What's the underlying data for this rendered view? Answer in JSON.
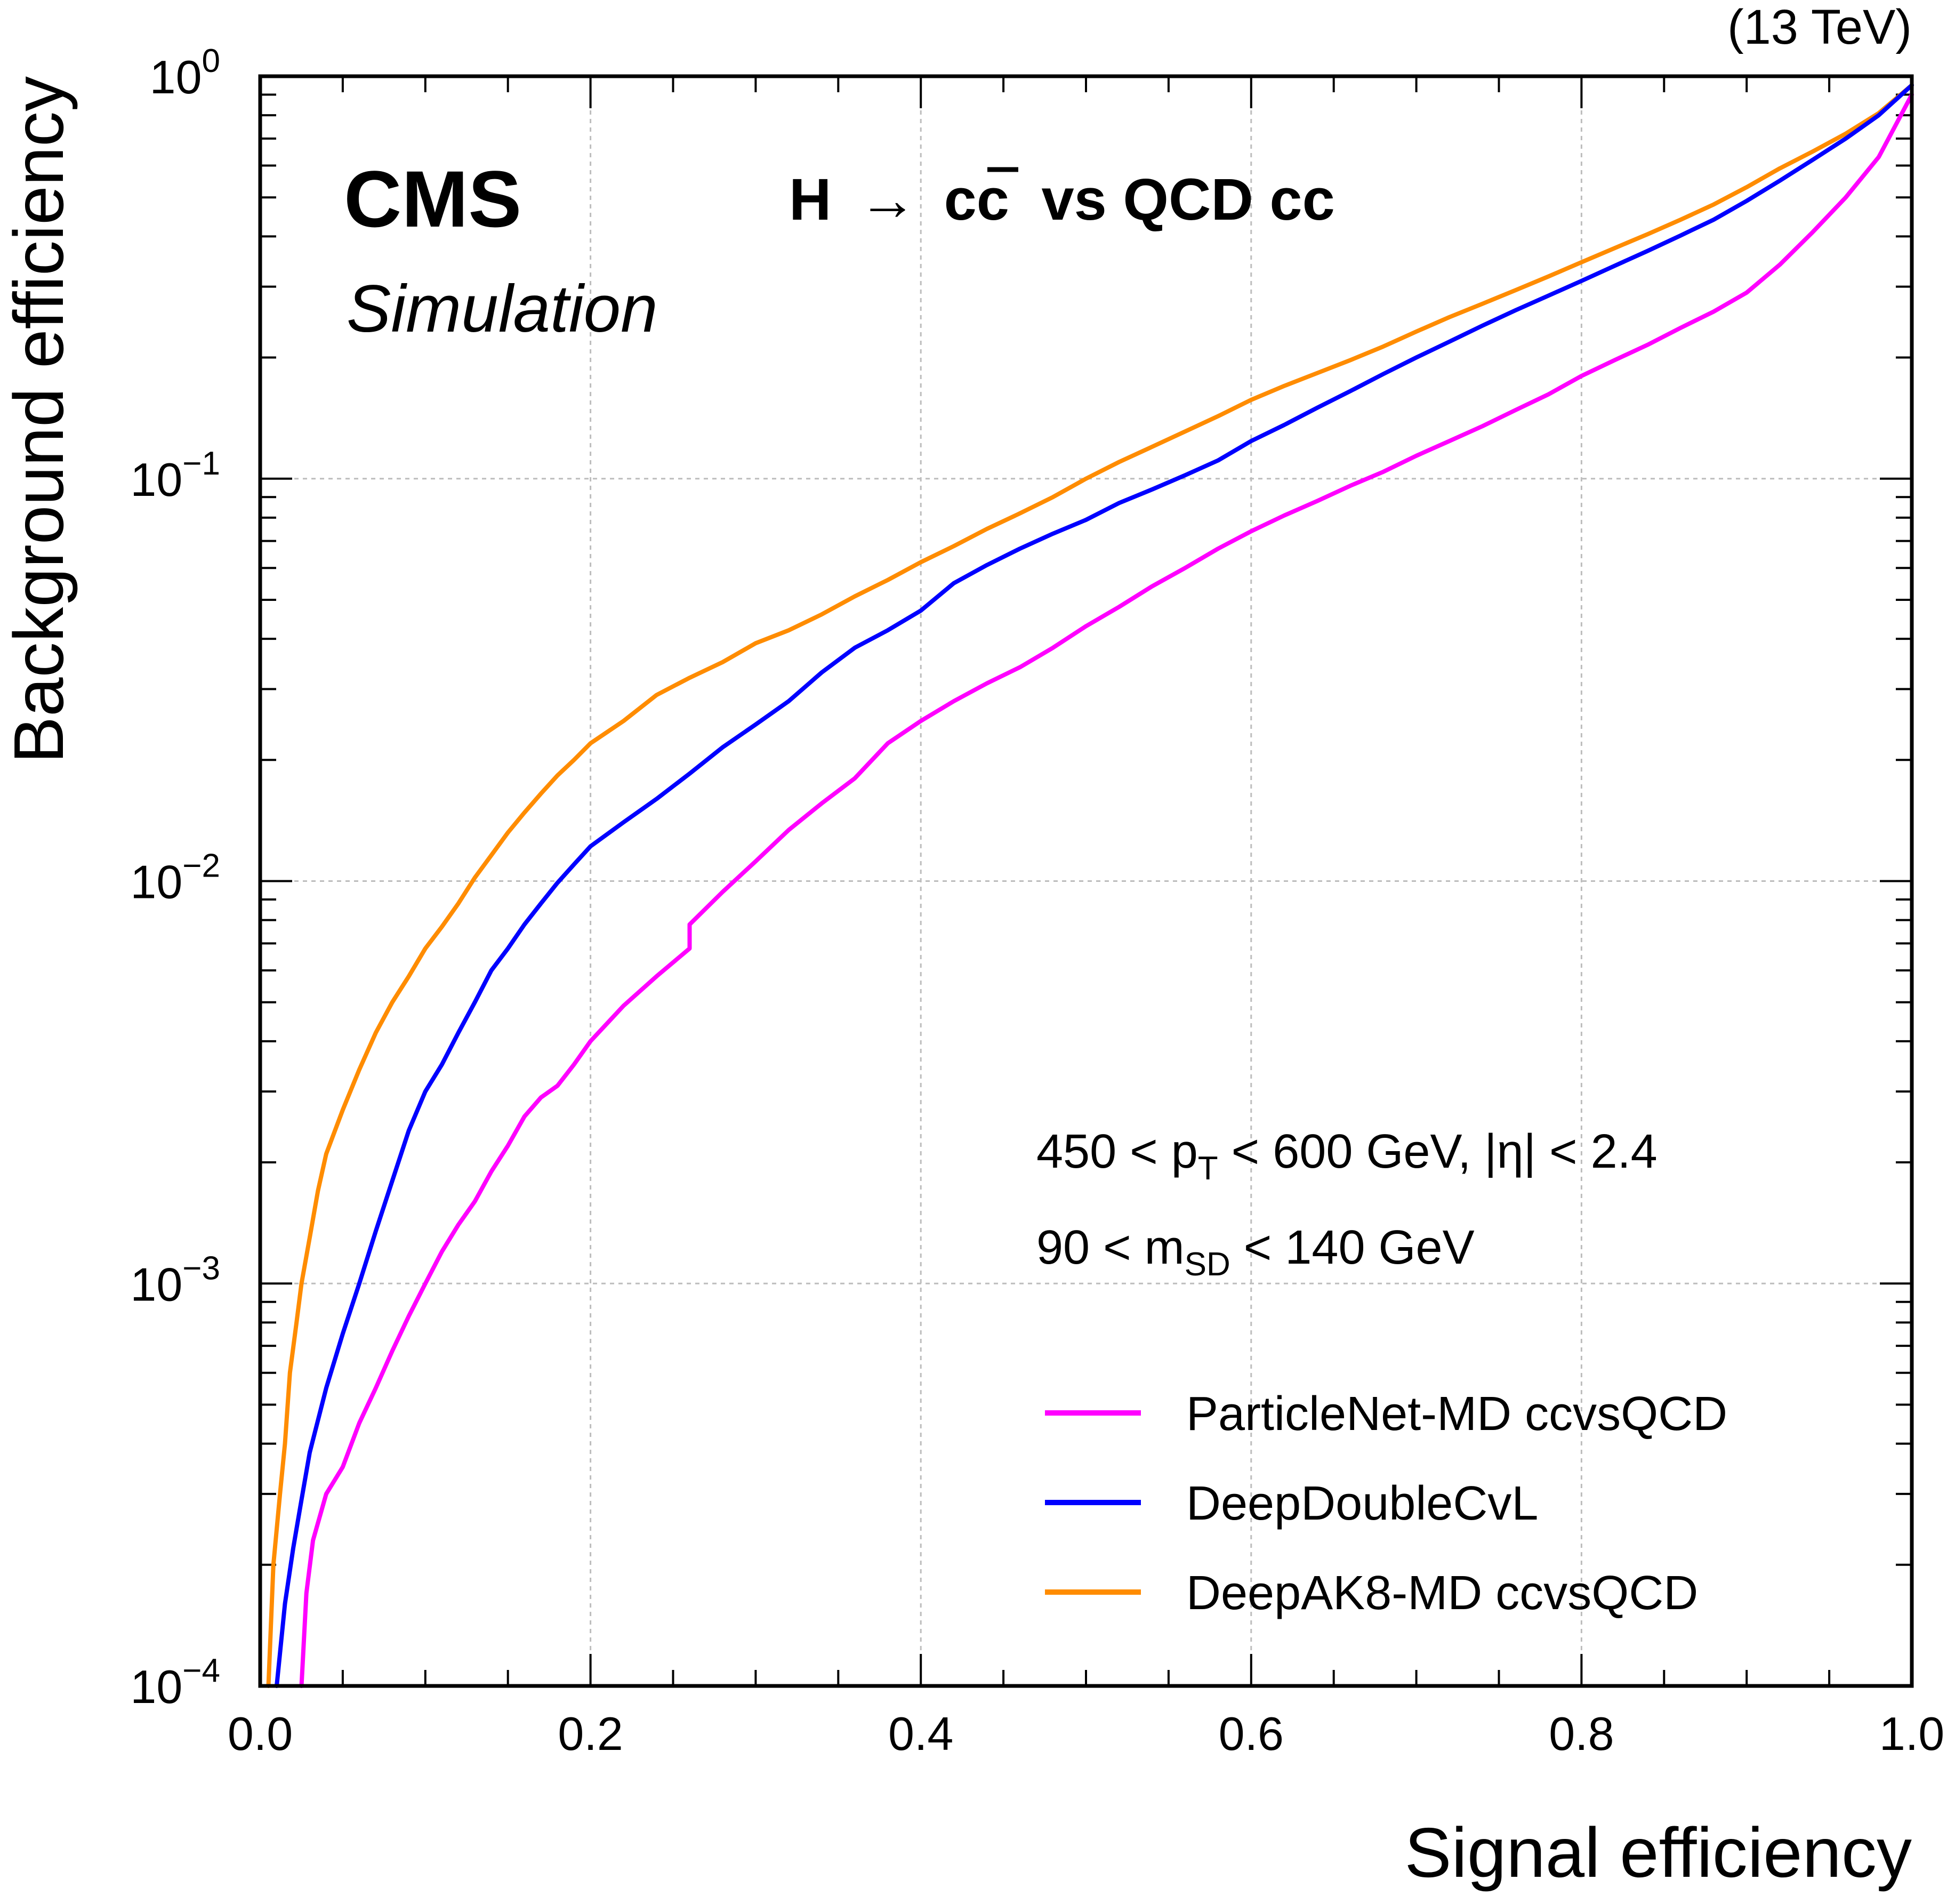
{
  "lumi_label": "(13 TeV)",
  "cms_label": "CMS",
  "sim_label": "Simulation",
  "process": {
    "lhs": "H",
    "arrow": "→",
    "cc": "cc",
    "rest": "vs QCD cc"
  },
  "cut_lines": [
    {
      "parts": [
        "450 < p",
        "T",
        " < 600 GeV, |η| < 2.4"
      ]
    },
    {
      "parts": [
        "90 < m",
        "SD",
        " < 140 GeV"
      ]
    }
  ],
  "chart_data": {
    "type": "line",
    "title": "",
    "xlabel": "Signal efficiency",
    "ylabel": "Background efficiency",
    "xlim": [
      0.0,
      1.0
    ],
    "ylim": [
      0.0001,
      1
    ],
    "yscale": "log",
    "grid": true,
    "legend_position": "bottom-right",
    "x_ticks": [
      {
        "value": 0.0,
        "label": "0.0"
      },
      {
        "value": 0.2,
        "label": "0.2"
      },
      {
        "value": 0.4,
        "label": "0.4"
      },
      {
        "value": 0.6,
        "label": "0.6"
      },
      {
        "value": 0.8,
        "label": "0.8"
      },
      {
        "value": 1.0,
        "label": "1.0"
      }
    ],
    "y_ticks": [
      {
        "value": 1,
        "base": "10",
        "exp": "0"
      },
      {
        "value": 0.1,
        "base": "10",
        "exp": "−1"
      },
      {
        "value": 0.01,
        "base": "10",
        "exp": "−2"
      },
      {
        "value": 0.001,
        "base": "10",
        "exp": "−3"
      },
      {
        "value": 0.0001,
        "base": "10",
        "exp": "−4"
      }
    ],
    "series": [
      {
        "name": "ParticleNet-MD ccvsQCD",
        "color": "#ff00ff",
        "points": [
          [
            0.025,
            0.0001
          ],
          [
            0.028,
            0.00017
          ],
          [
            0.032,
            0.00023
          ],
          [
            0.04,
            0.0003
          ],
          [
            0.05,
            0.00035
          ],
          [
            0.06,
            0.00045
          ],
          [
            0.07,
            0.00055
          ],
          [
            0.08,
            0.00068
          ],
          [
            0.09,
            0.00083
          ],
          [
            0.1,
            0.001
          ],
          [
            0.11,
            0.0012
          ],
          [
            0.12,
            0.0014
          ],
          [
            0.13,
            0.0016
          ],
          [
            0.14,
            0.0019
          ],
          [
            0.15,
            0.0022
          ],
          [
            0.16,
            0.0026
          ],
          [
            0.17,
            0.0029
          ],
          [
            0.18,
            0.0031
          ],
          [
            0.19,
            0.0035
          ],
          [
            0.2,
            0.004
          ],
          [
            0.22,
            0.0049
          ],
          [
            0.24,
            0.0058
          ],
          [
            0.26,
            0.0068
          ],
          [
            0.26,
            0.0078
          ],
          [
            0.28,
            0.0094
          ],
          [
            0.3,
            0.0112
          ],
          [
            0.32,
            0.0134
          ],
          [
            0.34,
            0.0156
          ],
          [
            0.36,
            0.018
          ],
          [
            0.38,
            0.022
          ],
          [
            0.4,
            0.025
          ],
          [
            0.42,
            0.028
          ],
          [
            0.44,
            0.031
          ],
          [
            0.46,
            0.034
          ],
          [
            0.48,
            0.038
          ],
          [
            0.5,
            0.043
          ],
          [
            0.52,
            0.048
          ],
          [
            0.54,
            0.054
          ],
          [
            0.56,
            0.06
          ],
          [
            0.58,
            0.067
          ],
          [
            0.6,
            0.074
          ],
          [
            0.62,
            0.081
          ],
          [
            0.64,
            0.088
          ],
          [
            0.66,
            0.096
          ],
          [
            0.68,
            0.104
          ],
          [
            0.7,
            0.114
          ],
          [
            0.72,
            0.124
          ],
          [
            0.74,
            0.135
          ],
          [
            0.76,
            0.148
          ],
          [
            0.78,
            0.162
          ],
          [
            0.8,
            0.18
          ],
          [
            0.82,
            0.197
          ],
          [
            0.84,
            0.215
          ],
          [
            0.86,
            0.237
          ],
          [
            0.88,
            0.26
          ],
          [
            0.9,
            0.29
          ],
          [
            0.92,
            0.34
          ],
          [
            0.94,
            0.41
          ],
          [
            0.96,
            0.5
          ],
          [
            0.98,
            0.63
          ],
          [
            1.0,
            0.9
          ]
        ]
      },
      {
        "name": "DeepDoubleCvL",
        "color": "#0000ff",
        "points": [
          [
            0.01,
            0.0001
          ],
          [
            0.015,
            0.00016
          ],
          [
            0.02,
            0.00022
          ],
          [
            0.025,
            0.00029
          ],
          [
            0.03,
            0.00038
          ],
          [
            0.04,
            0.00055
          ],
          [
            0.05,
            0.00075
          ],
          [
            0.06,
            0.001
          ],
          [
            0.07,
            0.00135
          ],
          [
            0.08,
            0.0018
          ],
          [
            0.09,
            0.0024
          ],
          [
            0.1,
            0.003
          ],
          [
            0.11,
            0.0035
          ],
          [
            0.12,
            0.0042
          ],
          [
            0.13,
            0.005
          ],
          [
            0.14,
            0.006
          ],
          [
            0.15,
            0.0068
          ],
          [
            0.16,
            0.0078
          ],
          [
            0.17,
            0.0088
          ],
          [
            0.18,
            0.0099
          ],
          [
            0.19,
            0.011
          ],
          [
            0.2,
            0.0122
          ],
          [
            0.22,
            0.014
          ],
          [
            0.24,
            0.016
          ],
          [
            0.26,
            0.0185
          ],
          [
            0.28,
            0.0215
          ],
          [
            0.3,
            0.0245
          ],
          [
            0.32,
            0.028
          ],
          [
            0.34,
            0.033
          ],
          [
            0.36,
            0.038
          ],
          [
            0.38,
            0.042
          ],
          [
            0.4,
            0.047
          ],
          [
            0.42,
            0.055
          ],
          [
            0.44,
            0.061
          ],
          [
            0.46,
            0.067
          ],
          [
            0.48,
            0.073
          ],
          [
            0.5,
            0.079
          ],
          [
            0.52,
            0.087
          ],
          [
            0.54,
            0.094
          ],
          [
            0.56,
            0.102
          ],
          [
            0.58,
            0.111
          ],
          [
            0.6,
            0.124
          ],
          [
            0.62,
            0.136
          ],
          [
            0.64,
            0.15
          ],
          [
            0.66,
            0.165
          ],
          [
            0.68,
            0.182
          ],
          [
            0.7,
            0.2
          ],
          [
            0.72,
            0.219
          ],
          [
            0.74,
            0.24
          ],
          [
            0.76,
            0.262
          ],
          [
            0.78,
            0.285
          ],
          [
            0.8,
            0.31
          ],
          [
            0.82,
            0.338
          ],
          [
            0.84,
            0.368
          ],
          [
            0.86,
            0.402
          ],
          [
            0.88,
            0.44
          ],
          [
            0.9,
            0.49
          ],
          [
            0.92,
            0.55
          ],
          [
            0.94,
            0.62
          ],
          [
            0.96,
            0.7
          ],
          [
            0.98,
            0.8
          ],
          [
            1.0,
            0.95
          ]
        ]
      },
      {
        "name": "DeepAK8-MD ccvsQCD",
        "color": "#ff8c00",
        "points": [
          [
            0.005,
            0.0001
          ],
          [
            0.008,
            0.0002
          ],
          [
            0.012,
            0.0003
          ],
          [
            0.015,
            0.0004
          ],
          [
            0.018,
            0.0006
          ],
          [
            0.022,
            0.0008
          ],
          [
            0.025,
            0.001
          ],
          [
            0.03,
            0.0013
          ],
          [
            0.035,
            0.0017
          ],
          [
            0.04,
            0.0021
          ],
          [
            0.05,
            0.0027
          ],
          [
            0.06,
            0.0034
          ],
          [
            0.07,
            0.0042
          ],
          [
            0.08,
            0.005
          ],
          [
            0.09,
            0.0058
          ],
          [
            0.1,
            0.0068
          ],
          [
            0.11,
            0.0077
          ],
          [
            0.12,
            0.0088
          ],
          [
            0.13,
            0.0102
          ],
          [
            0.14,
            0.0116
          ],
          [
            0.15,
            0.0132
          ],
          [
            0.16,
            0.0148
          ],
          [
            0.17,
            0.0165
          ],
          [
            0.18,
            0.0183
          ],
          [
            0.19,
            0.02
          ],
          [
            0.2,
            0.022
          ],
          [
            0.22,
            0.025
          ],
          [
            0.24,
            0.029
          ],
          [
            0.26,
            0.032
          ],
          [
            0.28,
            0.035
          ],
          [
            0.3,
            0.039
          ],
          [
            0.32,
            0.042
          ],
          [
            0.34,
            0.046
          ],
          [
            0.36,
            0.051
          ],
          [
            0.38,
            0.056
          ],
          [
            0.4,
            0.062
          ],
          [
            0.42,
            0.068
          ],
          [
            0.44,
            0.075
          ],
          [
            0.46,
            0.082
          ],
          [
            0.48,
            0.09
          ],
          [
            0.5,
            0.1
          ],
          [
            0.52,
            0.11
          ],
          [
            0.54,
            0.12
          ],
          [
            0.56,
            0.131
          ],
          [
            0.58,
            0.143
          ],
          [
            0.6,
            0.157
          ],
          [
            0.62,
            0.17
          ],
          [
            0.64,
            0.183
          ],
          [
            0.66,
            0.197
          ],
          [
            0.68,
            0.213
          ],
          [
            0.7,
            0.232
          ],
          [
            0.72,
            0.252
          ],
          [
            0.74,
            0.272
          ],
          [
            0.76,
            0.294
          ],
          [
            0.78,
            0.318
          ],
          [
            0.8,
            0.345
          ],
          [
            0.82,
            0.374
          ],
          [
            0.84,
            0.405
          ],
          [
            0.86,
            0.44
          ],
          [
            0.88,
            0.48
          ],
          [
            0.9,
            0.53
          ],
          [
            0.92,
            0.59
          ],
          [
            0.94,
            0.65
          ],
          [
            0.96,
            0.72
          ],
          [
            0.98,
            0.81
          ],
          [
            1.0,
            0.95
          ]
        ]
      }
    ]
  }
}
